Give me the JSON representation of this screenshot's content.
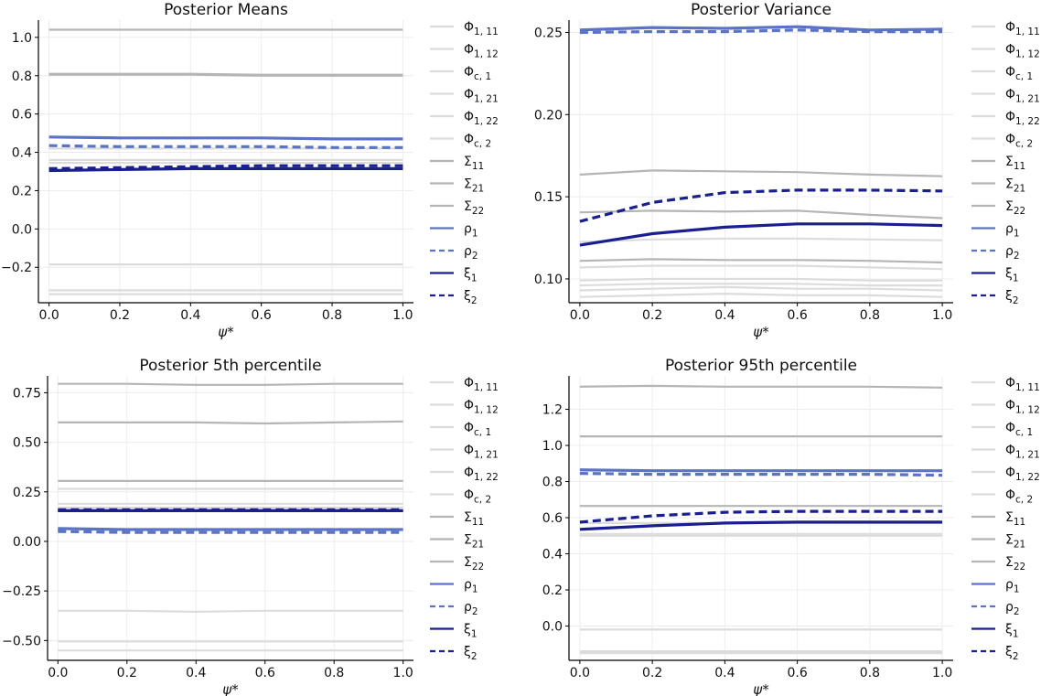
{
  "colors": {
    "phi_light": "#dcdcdc",
    "sigma_gray": "#b5b5b5",
    "rho_blue": "#5b73c4",
    "xi_navy": "#1a1f8f",
    "axis": "#000000",
    "grid": "#ececec"
  },
  "legend": {
    "entries": [
      {
        "base": "Φ",
        "sub": "1, 11",
        "color_key": "phi_light",
        "dash": false
      },
      {
        "base": "Φ",
        "sub": "1, 12",
        "color_key": "phi_light",
        "dash": false
      },
      {
        "base": "Φ",
        "sub": "c, 1",
        "color_key": "phi_light",
        "dash": false
      },
      {
        "base": "Φ",
        "sub": "1, 21",
        "color_key": "phi_light",
        "dash": false
      },
      {
        "base": "Φ",
        "sub": "1, 22",
        "color_key": "phi_light",
        "dash": false
      },
      {
        "base": "Φ",
        "sub": "c, 2",
        "color_key": "phi_light",
        "dash": false
      },
      {
        "base": "Σ",
        "sub": "11",
        "color_key": "sigma_gray",
        "dash": false
      },
      {
        "base": "Σ",
        "sub": "21",
        "color_key": "sigma_gray",
        "dash": false
      },
      {
        "base": "Σ",
        "sub": "22",
        "color_key": "sigma_gray",
        "dash": false
      },
      {
        "base": "ρ",
        "sub": "1",
        "color_key": "rho_blue",
        "dash": false
      },
      {
        "base": "ρ",
        "sub": "2",
        "color_key": "rho_blue",
        "dash": true
      },
      {
        "base": "ξ",
        "sub": "1",
        "color_key": "xi_navy",
        "dash": false
      },
      {
        "base": "ξ",
        "sub": "2",
        "color_key": "xi_navy",
        "dash": true
      }
    ]
  },
  "chart_data": [
    {
      "type": "line",
      "title": "Posterior Means",
      "xlabel": "ψ*",
      "ylabel": "",
      "x": [
        0.0,
        0.2,
        0.4,
        0.6,
        0.8,
        1.0
      ],
      "xlim": [
        -0.03,
        1.03
      ],
      "ylim": [
        -0.385,
        1.09
      ],
      "xticks": [
        0.0,
        0.2,
        0.4,
        0.6,
        0.8,
        1.0
      ],
      "xtick_labels": [
        "0.0",
        "0.2",
        "0.4",
        "0.6",
        "0.8",
        "1.0"
      ],
      "yticks": [
        -0.2,
        0.0,
        0.2,
        0.4,
        0.6,
        0.8,
        1.0
      ],
      "ytick_labels": [
        "−0.2",
        "0.0",
        "0.2",
        "0.4",
        "0.6",
        "0.8",
        "1.0"
      ],
      "grid": true,
      "legend_position": "right",
      "series": [
        {
          "name": "Φ1,11",
          "color_key": "phi_light",
          "dash": false,
          "values": [
            0.36,
            0.36,
            0.36,
            0.36,
            0.36,
            0.36
          ]
        },
        {
          "name": "Φ1,12",
          "color_key": "phi_light",
          "dash": false,
          "values": [
            -0.185,
            -0.185,
            -0.185,
            -0.185,
            -0.185,
            -0.185
          ]
        },
        {
          "name": "Φc,1",
          "color_key": "phi_light",
          "dash": false,
          "values": [
            -0.32,
            -0.32,
            -0.32,
            -0.32,
            -0.32,
            -0.32
          ]
        },
        {
          "name": "Φ1,21",
          "color_key": "phi_light",
          "dash": false,
          "values": [
            0.42,
            0.42,
            0.42,
            0.42,
            0.42,
            0.42
          ]
        },
        {
          "name": "Φ1,22",
          "color_key": "phi_light",
          "dash": false,
          "values": [
            -0.34,
            -0.34,
            -0.34,
            -0.34,
            -0.34,
            -0.34
          ]
        },
        {
          "name": "Φc,2",
          "color_key": "phi_light",
          "dash": false,
          "values": [
            0.345,
            0.345,
            0.345,
            0.345,
            0.345,
            0.345
          ]
        },
        {
          "name": "Σ11",
          "color_key": "sigma_gray",
          "dash": false,
          "values": [
            1.04,
            1.04,
            1.04,
            1.04,
            1.04,
            1.04
          ]
        },
        {
          "name": "Σ21",
          "color_key": "sigma_gray",
          "dash": false,
          "values": [
            0.81,
            0.81,
            0.81,
            0.805,
            0.805,
            0.805
          ]
        },
        {
          "name": "Σ22",
          "color_key": "sigma_gray",
          "dash": false,
          "values": [
            0.805,
            0.805,
            0.805,
            0.8,
            0.8,
            0.8
          ]
        },
        {
          "name": "ρ1",
          "color_key": "rho_blue",
          "dash": false,
          "values": [
            0.48,
            0.475,
            0.475,
            0.475,
            0.47,
            0.47
          ]
        },
        {
          "name": "ρ2",
          "color_key": "rho_blue",
          "dash": true,
          "values": [
            0.435,
            0.43,
            0.43,
            0.43,
            0.425,
            0.425
          ]
        },
        {
          "name": "ξ1",
          "color_key": "xi_navy",
          "dash": false,
          "values": [
            0.305,
            0.31,
            0.315,
            0.315,
            0.315,
            0.315
          ]
        },
        {
          "name": "ξ2",
          "color_key": "xi_navy",
          "dash": true,
          "values": [
            0.315,
            0.32,
            0.325,
            0.33,
            0.33,
            0.33
          ]
        }
      ]
    },
    {
      "type": "line",
      "title": "Posterior Variance",
      "xlabel": "ψ*",
      "ylabel": "",
      "x": [
        0.0,
        0.2,
        0.4,
        0.6,
        0.8,
        1.0
      ],
      "xlim": [
        -0.03,
        1.03
      ],
      "ylim": [
        0.0855,
        0.2575
      ],
      "xticks": [
        0.0,
        0.2,
        0.4,
        0.6,
        0.8,
        1.0
      ],
      "xtick_labels": [
        "0.0",
        "0.2",
        "0.4",
        "0.6",
        "0.8",
        "1.0"
      ],
      "yticks": [
        0.1,
        0.15,
        0.2,
        0.25
      ],
      "ytick_labels": [
        "0.10",
        "0.15",
        "0.20",
        "0.25"
      ],
      "grid": true,
      "legend_position": "right",
      "series": [
        {
          "name": "Φ1,11",
          "color_key": "phi_light",
          "dash": false,
          "values": [
            0.107,
            0.108,
            0.108,
            0.108,
            0.107,
            0.106
          ]
        },
        {
          "name": "Φ1,12",
          "color_key": "phi_light",
          "dash": false,
          "values": [
            0.099,
            0.1,
            0.1,
            0.1,
            0.099,
            0.099
          ]
        },
        {
          "name": "Φc,1",
          "color_key": "phi_light",
          "dash": false,
          "values": [
            0.093,
            0.094,
            0.095,
            0.094,
            0.094,
            0.093
          ]
        },
        {
          "name": "Φ1,21",
          "color_key": "phi_light",
          "dash": false,
          "values": [
            0.1225,
            0.124,
            0.1245,
            0.1245,
            0.124,
            0.1235
          ]
        },
        {
          "name": "Φ1,22",
          "color_key": "phi_light",
          "dash": false,
          "values": [
            0.096,
            0.097,
            0.097,
            0.097,
            0.096,
            0.096
          ]
        },
        {
          "name": "Φc,2",
          "color_key": "phi_light",
          "dash": false,
          "values": [
            0.089,
            0.09,
            0.091,
            0.09,
            0.09,
            0.089
          ]
        },
        {
          "name": "Σ11",
          "color_key": "sigma_gray",
          "dash": false,
          "values": [
            0.1635,
            0.166,
            0.1655,
            0.165,
            0.1635,
            0.1625
          ]
        },
        {
          "name": "Σ21",
          "color_key": "sigma_gray",
          "dash": false,
          "values": [
            0.1405,
            0.1415,
            0.141,
            0.1415,
            0.139,
            0.137
          ]
        },
        {
          "name": "Σ22",
          "color_key": "sigma_gray",
          "dash": false,
          "values": [
            0.111,
            0.112,
            0.1115,
            0.1115,
            0.111,
            0.11
          ]
        },
        {
          "name": "ρ1",
          "color_key": "rho_blue",
          "dash": false,
          "values": [
            0.2515,
            0.253,
            0.2525,
            0.2535,
            0.2515,
            0.252
          ]
        },
        {
          "name": "ρ2",
          "color_key": "rho_blue",
          "dash": true,
          "values": [
            0.25,
            0.2505,
            0.2505,
            0.2515,
            0.2505,
            0.2505
          ]
        },
        {
          "name": "ξ1",
          "color_key": "xi_navy",
          "dash": false,
          "values": [
            0.1205,
            0.1275,
            0.1315,
            0.1335,
            0.1335,
            0.1325
          ]
        },
        {
          "name": "ξ2",
          "color_key": "xi_navy",
          "dash": true,
          "values": [
            0.135,
            0.1465,
            0.1525,
            0.154,
            0.154,
            0.1535
          ]
        }
      ]
    },
    {
      "type": "line",
      "title": "Posterior 5th percentile",
      "xlabel": "ψ*",
      "ylabel": "",
      "x": [
        0.0,
        0.2,
        0.4,
        0.6,
        0.8,
        1.0
      ],
      "xlim": [
        -0.03,
        1.03
      ],
      "ylim": [
        -0.6,
        0.835
      ],
      "xticks": [
        0.0,
        0.2,
        0.4,
        0.6,
        0.8,
        1.0
      ],
      "xtick_labels": [
        "0.0",
        "0.2",
        "0.4",
        "0.6",
        "0.8",
        "1.0"
      ],
      "yticks": [
        -0.5,
        -0.25,
        0.0,
        0.25,
        0.5,
        0.75
      ],
      "ytick_labels": [
        "−0.50",
        "−0.25",
        "0.00",
        "0.25",
        "0.50",
        "0.75"
      ],
      "grid": true,
      "legend_position": "right",
      "series": [
        {
          "name": "Φ1,11",
          "color_key": "phi_light",
          "dash": false,
          "values": [
            0.19,
            0.19,
            0.19,
            0.19,
            0.19,
            0.19
          ]
        },
        {
          "name": "Φ1,12",
          "color_key": "phi_light",
          "dash": false,
          "values": [
            -0.35,
            -0.35,
            -0.355,
            -0.35,
            -0.35,
            -0.35
          ]
        },
        {
          "name": "Φc,1",
          "color_key": "phi_light",
          "dash": false,
          "values": [
            -0.505,
            -0.505,
            -0.505,
            -0.505,
            -0.505,
            -0.505
          ]
        },
        {
          "name": "Φ1,21",
          "color_key": "phi_light",
          "dash": false,
          "values": [
            0.265,
            0.265,
            0.265,
            0.265,
            0.265,
            0.265
          ]
        },
        {
          "name": "Φ1,22",
          "color_key": "phi_light",
          "dash": false,
          "values": [
            -0.55,
            -0.55,
            -0.55,
            -0.55,
            -0.55,
            -0.55
          ]
        },
        {
          "name": "Φc,2",
          "color_key": "phi_light",
          "dash": false,
          "values": [
            0.17,
            0.17,
            0.17,
            0.17,
            0.17,
            0.17
          ]
        },
        {
          "name": "Σ11",
          "color_key": "sigma_gray",
          "dash": false,
          "values": [
            0.795,
            0.795,
            0.79,
            0.79,
            0.795,
            0.795
          ]
        },
        {
          "name": "Σ21",
          "color_key": "sigma_gray",
          "dash": false,
          "values": [
            0.6,
            0.6,
            0.6,
            0.595,
            0.6,
            0.605
          ]
        },
        {
          "name": "Σ22",
          "color_key": "sigma_gray",
          "dash": false,
          "values": [
            0.305,
            0.305,
            0.305,
            0.305,
            0.305,
            0.305
          ]
        },
        {
          "name": "ρ1",
          "color_key": "rho_blue",
          "dash": false,
          "values": [
            0.065,
            0.06,
            0.06,
            0.06,
            0.06,
            0.06
          ]
        },
        {
          "name": "ρ2",
          "color_key": "rho_blue",
          "dash": true,
          "values": [
            0.05,
            0.045,
            0.045,
            0.045,
            0.045,
            0.045
          ]
        },
        {
          "name": "ξ1",
          "color_key": "xi_navy",
          "dash": false,
          "values": [
            0.155,
            0.155,
            0.155,
            0.155,
            0.155,
            0.155
          ]
        },
        {
          "name": "ξ2",
          "color_key": "xi_navy",
          "dash": true,
          "values": [
            0.16,
            0.16,
            0.16,
            0.16,
            0.16,
            0.16
          ]
        }
      ]
    },
    {
      "type": "line",
      "title": "Posterior 95th percentile",
      "xlabel": "ψ*",
      "ylabel": "",
      "x": [
        0.0,
        0.2,
        0.4,
        0.6,
        0.8,
        1.0
      ],
      "xlim": [
        -0.03,
        1.03
      ],
      "ylim": [
        -0.19,
        1.385
      ],
      "xticks": [
        0.0,
        0.2,
        0.4,
        0.6,
        0.8,
        1.0
      ],
      "xtick_labels": [
        "0.0",
        "0.2",
        "0.4",
        "0.6",
        "0.8",
        "1.0"
      ],
      "yticks": [
        0.0,
        0.2,
        0.4,
        0.6,
        0.8,
        1.0,
        1.2
      ],
      "ytick_labels": [
        "0.0",
        "0.2",
        "0.4",
        "0.6",
        "0.8",
        "1.0",
        "1.2"
      ],
      "grid": true,
      "legend_position": "right",
      "series": [
        {
          "name": "Φ1,11",
          "color_key": "phi_light",
          "dash": false,
          "values": [
            0.51,
            0.51,
            0.51,
            0.51,
            0.51,
            0.51
          ]
        },
        {
          "name": "Φ1,12",
          "color_key": "phi_light",
          "dash": false,
          "values": [
            -0.02,
            -0.02,
            -0.02,
            -0.02,
            -0.02,
            -0.02
          ]
        },
        {
          "name": "Φc,1",
          "color_key": "phi_light",
          "dash": false,
          "values": [
            -0.14,
            -0.14,
            -0.14,
            -0.14,
            -0.14,
            -0.14
          ]
        },
        {
          "name": "Φ1,21",
          "color_key": "phi_light",
          "dash": false,
          "values": [
            0.57,
            0.57,
            0.57,
            0.57,
            0.57,
            0.57
          ]
        },
        {
          "name": "Φ1,22",
          "color_key": "phi_light",
          "dash": false,
          "values": [
            -0.15,
            -0.15,
            -0.15,
            -0.15,
            -0.15,
            -0.15
          ]
        },
        {
          "name": "Φc,2",
          "color_key": "phi_light",
          "dash": false,
          "values": [
            0.5,
            0.5,
            0.5,
            0.5,
            0.5,
            0.5
          ]
        },
        {
          "name": "Σ11",
          "color_key": "sigma_gray",
          "dash": false,
          "values": [
            1.325,
            1.33,
            1.325,
            1.325,
            1.325,
            1.32
          ]
        },
        {
          "name": "Σ21",
          "color_key": "sigma_gray",
          "dash": false,
          "values": [
            1.05,
            1.05,
            1.05,
            1.05,
            1.05,
            1.05
          ]
        },
        {
          "name": "Σ22",
          "color_key": "sigma_gray",
          "dash": false,
          "values": [
            0.665,
            0.665,
            0.665,
            0.665,
            0.665,
            0.665
          ]
        },
        {
          "name": "ρ1",
          "color_key": "rho_blue",
          "dash": false,
          "values": [
            0.865,
            0.86,
            0.86,
            0.86,
            0.86,
            0.86
          ]
        },
        {
          "name": "ρ2",
          "color_key": "rho_blue",
          "dash": true,
          "values": [
            0.845,
            0.84,
            0.84,
            0.84,
            0.84,
            0.835
          ]
        },
        {
          "name": "ξ1",
          "color_key": "xi_navy",
          "dash": false,
          "values": [
            0.535,
            0.555,
            0.57,
            0.575,
            0.575,
            0.575
          ]
        },
        {
          "name": "ξ2",
          "color_key": "xi_navy",
          "dash": true,
          "values": [
            0.575,
            0.61,
            0.63,
            0.635,
            0.635,
            0.635
          ]
        }
      ]
    }
  ]
}
